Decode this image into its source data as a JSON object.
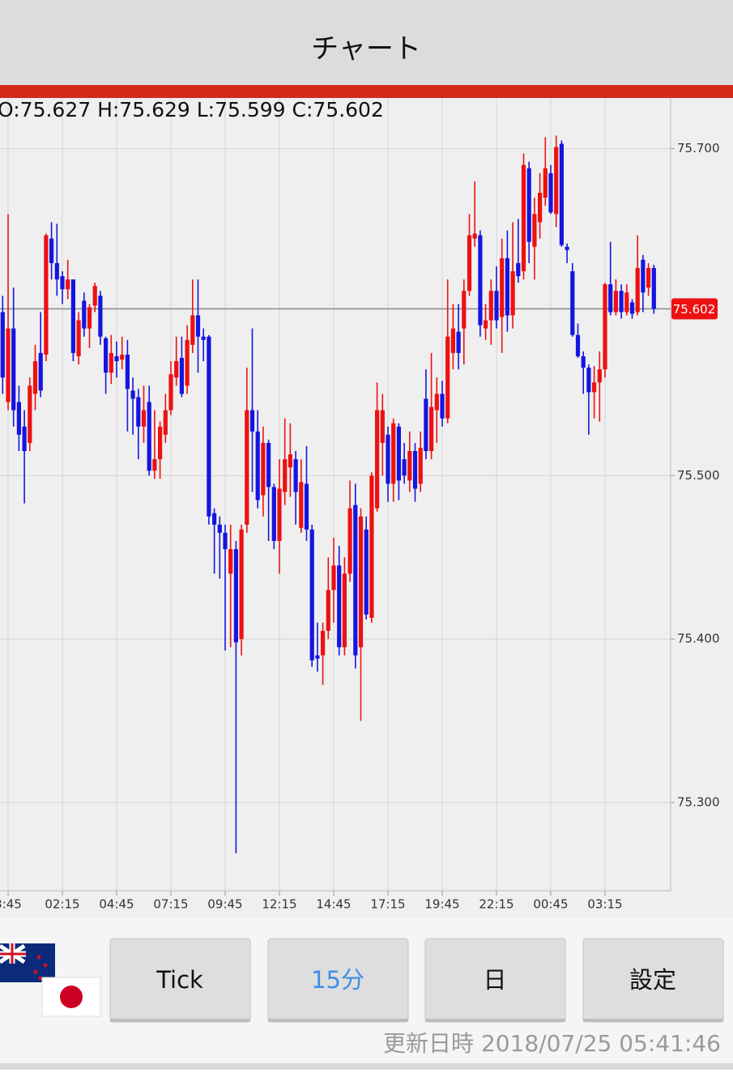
{
  "header": {
    "title": "チャート"
  },
  "chart_data": {
    "type": "candlestick",
    "ohlc_label": "O:75.627 H:75.629 L:75.599 C:75.602",
    "categories": [
      null,
      "3:45",
      null,
      null,
      null,
      null,
      null,
      null,
      null,
      null,
      null,
      "02:15",
      null,
      null,
      null,
      null,
      null,
      null,
      null,
      null,
      null,
      "04:45",
      null,
      null,
      null,
      null,
      null,
      null,
      null,
      null,
      null,
      "07:15",
      null,
      null,
      null,
      null,
      null,
      null,
      null,
      null,
      null,
      "09:45",
      null,
      null,
      null,
      null,
      null,
      null,
      null,
      null,
      null,
      "12:15",
      null,
      null,
      null,
      null,
      null,
      null,
      null,
      null,
      null,
      "14:45",
      null,
      null,
      null,
      null,
      null,
      null,
      null,
      null,
      null,
      "17:15",
      null,
      null,
      null,
      null,
      null,
      null,
      null,
      null,
      null,
      "19:45",
      null,
      null,
      null,
      null,
      null,
      null,
      null,
      null,
      null,
      "22:15",
      null,
      null,
      null,
      null,
      null,
      null,
      null,
      null,
      null,
      "00:45",
      null,
      null,
      null,
      null,
      null,
      null,
      null,
      null,
      null,
      "03:15",
      null,
      null,
      null,
      null,
      null,
      null,
      null,
      null,
      null
    ],
    "open": [
      75.6,
      75.545,
      75.59,
      75.545,
      75.53,
      75.52,
      75.55,
      75.575,
      75.574,
      75.645,
      75.63,
      75.622,
      75.614,
      75.62,
      75.573,
      75.607,
      75.59,
      75.604,
      75.61,
      75.584,
      75.563,
      75.573,
      75.571,
      75.574,
      75.552,
      75.548,
      75.53,
      75.545,
      75.503,
      75.51,
      75.525,
      75.54,
      75.56,
      75.572,
      75.555,
      75.58,
      75.598,
      75.585,
      75.585,
      75.477,
      75.47,
      75.465,
      75.44,
      75.455,
      75.4,
      75.47,
      75.54,
      75.527,
      75.488,
      75.52,
      75.493,
      75.46,
      75.49,
      75.505,
      75.51,
      75.468,
      75.495,
      75.467,
      75.39,
      75.39,
      75.405,
      75.43,
      75.445,
      75.395,
      75.44,
      75.482,
      75.395,
      75.467,
      75.413,
      75.48,
      75.52,
      75.525,
      75.495,
      75.53,
      75.51,
      75.497,
      75.515,
      75.495,
      75.547,
      75.515,
      75.54,
      75.55,
      75.535,
      75.575,
      75.588,
      75.59,
      75.613,
      75.645,
      75.647,
      75.59,
      75.595,
      75.613,
      75.597,
      75.633,
      75.598,
      75.63,
      75.625,
      75.688,
      75.64,
      75.655,
      75.67,
      75.685,
      75.66,
      75.703,
      75.64,
      75.625,
      75.586,
      75.573,
      75.566,
      75.551,
      75.557,
      75.565,
      75.617,
      75.6,
      75.613,
      75.6,
      75.606,
      75.6,
      75.632,
      75.615,
      75.627
    ],
    "high": [
      75.61,
      75.66,
      75.615,
      75.555,
      75.54,
      75.56,
      75.58,
      75.6,
      75.648,
      75.655,
      75.654,
      75.625,
      75.632,
      75.62,
      75.6,
      75.612,
      75.605,
      75.618,
      75.613,
      75.585,
      75.586,
      75.582,
      75.585,
      75.583,
      75.56,
      75.553,
      75.555,
      75.555,
      75.54,
      75.533,
      75.55,
      75.57,
      75.585,
      75.585,
      75.592,
      75.62,
      75.62,
      75.59,
      75.586,
      75.48,
      75.475,
      75.47,
      75.47,
      75.46,
      75.47,
      75.566,
      75.59,
      75.54,
      75.53,
      75.522,
      75.495,
      75.51,
      75.535,
      75.532,
      75.515,
      75.51,
      75.518,
      75.47,
      75.41,
      75.41,
      75.45,
      75.462,
      75.457,
      75.45,
      75.497,
      75.495,
      75.48,
      75.475,
      75.502,
      75.557,
      75.55,
      75.53,
      75.535,
      75.532,
      75.52,
      75.527,
      75.52,
      75.527,
      75.565,
      75.575,
      75.56,
      75.558,
      75.62,
      75.605,
      75.605,
      75.62,
      75.66,
      75.68,
      75.65,
      75.605,
      75.62,
      75.628,
      75.645,
      75.65,
      75.655,
      75.657,
      75.697,
      75.692,
      75.67,
      75.685,
      75.707,
      75.69,
      75.708,
      75.705,
      75.642,
      75.63,
      75.593,
      75.576,
      75.568,
      75.567,
      75.576,
      75.618,
      75.643,
      75.62,
      75.617,
      75.617,
      75.608,
      75.647,
      75.635,
      75.63,
      75.629
    ],
    "low": [
      75.55,
      75.54,
      75.53,
      75.515,
      75.483,
      75.515,
      75.54,
      75.548,
      75.57,
      75.62,
      75.61,
      75.605,
      75.608,
      75.57,
      75.568,
      75.585,
      75.578,
      75.6,
      75.58,
      75.55,
      75.556,
      75.56,
      75.565,
      75.527,
      75.525,
      75.51,
      75.52,
      75.5,
      75.498,
      75.498,
      75.52,
      75.537,
      75.555,
      75.548,
      75.55,
      75.575,
      75.563,
      75.57,
      75.47,
      75.44,
      75.437,
      75.393,
      75.395,
      75.269,
      75.39,
      75.465,
      75.49,
      75.48,
      75.475,
      75.46,
      75.455,
      75.44,
      75.482,
      75.487,
      75.47,
      75.465,
      75.46,
      75.383,
      75.38,
      75.372,
      75.4,
      75.41,
      75.39,
      75.39,
      75.435,
      75.382,
      75.35,
      75.412,
      75.41,
      75.478,
      75.5,
      75.484,
      75.484,
      75.485,
      75.495,
      75.49,
      75.484,
      75.49,
      75.51,
      75.51,
      75.52,
      75.53,
      75.532,
      75.565,
      75.565,
      75.568,
      75.61,
      75.64,
      75.585,
      75.583,
      75.58,
      75.59,
      75.575,
      75.588,
      75.59,
      75.618,
      75.62,
      75.63,
      75.62,
      75.645,
      75.665,
      75.66,
      75.652,
      75.64,
      75.63,
      75.585,
      75.572,
      75.55,
      75.525,
      75.535,
      75.533,
      75.56,
      75.598,
      75.598,
      75.596,
      75.598,
      75.596,
      75.598,
      75.6,
      75.61,
      75.599
    ],
    "close": [
      75.56,
      75.59,
      75.54,
      75.525,
      75.515,
      75.555,
      75.57,
      75.552,
      75.647,
      75.63,
      75.62,
      75.614,
      75.62,
      75.575,
      75.595,
      75.59,
      75.603,
      75.616,
      75.585,
      75.563,
      75.575,
      75.57,
      75.574,
      75.553,
      75.547,
      75.53,
      75.54,
      75.503,
      75.51,
      75.53,
      75.54,
      75.562,
      75.57,
      75.55,
      75.583,
      75.598,
      75.585,
      75.583,
      75.475,
      75.47,
      75.465,
      75.455,
      75.455,
      75.398,
      75.467,
      75.54,
      75.527,
      75.485,
      75.52,
      75.493,
      75.46,
      75.492,
      75.51,
      75.513,
      75.49,
      75.496,
      75.467,
      75.387,
      75.388,
      75.405,
      75.43,
      75.445,
      75.395,
      75.44,
      75.48,
      75.39,
      75.475,
      75.415,
      75.5,
      75.54,
      75.54,
      75.495,
      75.532,
      75.497,
      75.5,
      75.515,
      75.492,
      75.517,
      75.515,
      75.542,
      75.55,
      75.535,
      75.585,
      75.59,
      75.575,
      75.613,
      75.647,
      75.648,
      75.592,
      75.595,
      75.613,
      75.595,
      75.633,
      75.598,
      75.625,
      75.622,
      75.69,
      75.643,
      75.66,
      75.673,
      75.688,
      75.661,
      75.701,
      75.641,
      75.638,
      75.586,
      75.573,
      75.566,
      75.551,
      75.557,
      75.565,
      75.617,
      75.6,
      75.613,
      75.6,
      75.612,
      75.599,
      75.627,
      75.612,
      75.627,
      75.602
    ],
    "up_color": "#ee1111",
    "down_color": "#1515e0",
    "last_price": 75.602,
    "last_price_color": "#ee1111",
    "ylim": [
      75.246,
      75.731
    ],
    "yticks": [
      {
        "value": 75.3,
        "label": "75.300"
      },
      {
        "value": 75.4,
        "label": "75.400"
      },
      {
        "value": 75.5,
        "label": "75.500"
      },
      {
        "value": 75.7,
        "label": "75.700"
      }
    ],
    "grid": true
  },
  "buttons": [
    {
      "label": "Tick",
      "selected": false
    },
    {
      "label": "15分",
      "selected": true
    },
    {
      "label": "日",
      "selected": false
    },
    {
      "label": "設定",
      "selected": false
    }
  ],
  "footer": {
    "updated": "更新日時 2018/07/25 05:41:46"
  }
}
